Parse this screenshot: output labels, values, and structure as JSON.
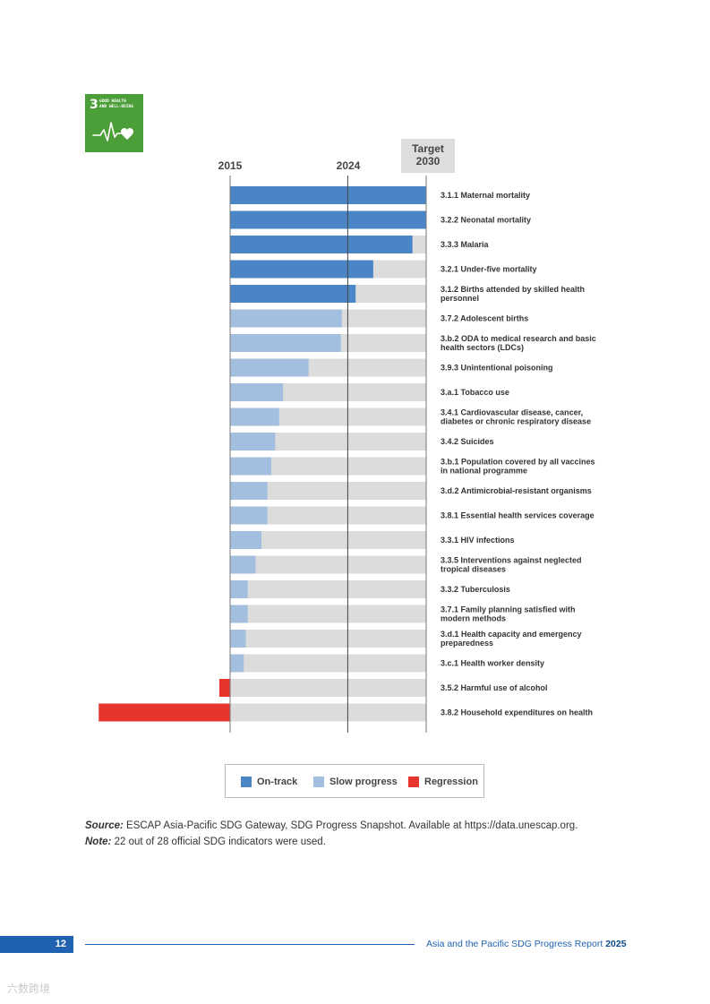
{
  "sdg_badge": {
    "number": "3",
    "title_line1": "GOOD HEALTH",
    "title_line2": "AND WELL-BEING",
    "icon": "heartbeat-heart-icon",
    "color": "#4c9f38"
  },
  "chart_data": {
    "type": "bar",
    "orientation": "horizontal",
    "x_ticks": [
      "2015",
      "2024"
    ],
    "target_label_line1": "Target",
    "target_label_line2": "2030",
    "progress_scale": "fraction of 2015 to 2030 distance achieved; 1.0 = target reached, negative = regression",
    "current_year_fraction": 0.6,
    "categories": [
      {
        "label": [
          "3.1.1 Maternal mortality"
        ],
        "value": 1.0,
        "status": "on-track"
      },
      {
        "label": [
          "3.2.2 Neonatal mortality"
        ],
        "value": 1.0,
        "status": "on-track"
      },
      {
        "label": [
          "3.3.3 Malaria"
        ],
        "value": 0.93,
        "status": "on-track"
      },
      {
        "label": [
          "3.2.1 Under-five mortality"
        ],
        "value": 0.73,
        "status": "on-track"
      },
      {
        "label": [
          "3.1.2 Births attended by skilled health",
          "personnel"
        ],
        "value": 0.64,
        "status": "on-track"
      },
      {
        "label": [
          "3.7.2 Adolescent births"
        ],
        "value": 0.57,
        "status": "slow"
      },
      {
        "label": [
          "3.b.2 ODA to medical research and basic",
          "health sectors (LDCs)"
        ],
        "value": 0.565,
        "status": "slow"
      },
      {
        "label": [
          "3.9.3 Unintentional poisoning"
        ],
        "value": 0.4,
        "status": "slow"
      },
      {
        "label": [
          "3.a.1 Tobacco use"
        ],
        "value": 0.27,
        "status": "slow"
      },
      {
        "label": [
          "3.4.1 Cardiovascular disease, cancer,",
          "diabetes or chronic respiratory disease"
        ],
        "value": 0.25,
        "status": "slow"
      },
      {
        "label": [
          "3.4.2 Suicides"
        ],
        "value": 0.23,
        "status": "slow"
      },
      {
        "label": [
          "3.b.1 Population covered by all vaccines",
          "in national programme"
        ],
        "value": 0.21,
        "status": "slow"
      },
      {
        "label": [
          "3.d.2 Antimicrobial-resistant organisms"
        ],
        "value": 0.19,
        "status": "slow"
      },
      {
        "label": [
          "3.8.1 Essential health services coverage"
        ],
        "value": 0.19,
        "status": "slow"
      },
      {
        "label": [
          "3.3.1 HIV infections"
        ],
        "value": 0.16,
        "status": "slow"
      },
      {
        "label": [
          "3.3.5 Interventions against neglected",
          "tropical diseases"
        ],
        "value": 0.13,
        "status": "slow"
      },
      {
        "label": [
          "3.3.2 Tuberculosis"
        ],
        "value": 0.09,
        "status": "slow"
      },
      {
        "label": [
          "3.7.1 Family planning satisfied with",
          "modern methods"
        ],
        "value": 0.09,
        "status": "slow"
      },
      {
        "label": [
          "3.d.1 Health capacity and emergency",
          "preparedness"
        ],
        "value": 0.08,
        "status": "slow"
      },
      {
        "label": [
          "3.c.1 Health worker density"
        ],
        "value": 0.07,
        "status": "slow"
      },
      {
        "label": [
          "3.5.2 Harmful use of alcohol"
        ],
        "value": -0.055,
        "status": "regression"
      },
      {
        "label": [
          "3.8.2 Household expenditures on health"
        ],
        "value": -0.67,
        "status": "regression"
      }
    ],
    "colors": {
      "on-track": "#4a86c5",
      "slow": "#a3bfdf",
      "regression": "#e5352d",
      "background": "#dcdcdc",
      "target_box": "#dedede"
    }
  },
  "legend": {
    "items": [
      {
        "label": "On-track",
        "color": "#4a86c5"
      },
      {
        "label": "Slow progress",
        "color": "#a3bfdf"
      },
      {
        "label": "Regression",
        "color": "#e5352d"
      }
    ]
  },
  "notes": {
    "source_label": "Source:",
    "source_text": "ESCAP Asia-Pacific SDG Gateway, SDG Progress Snapshot. Available at https://data.unescap.org.",
    "note_label": "Note:",
    "note_text": "22 out of 28 official SDG indicators were used."
  },
  "footer": {
    "page_number": "12",
    "report_title": "Asia and the Pacific SDG Progress Report",
    "report_year": "2025"
  },
  "watermark": {
    "text": "六数跨境"
  }
}
